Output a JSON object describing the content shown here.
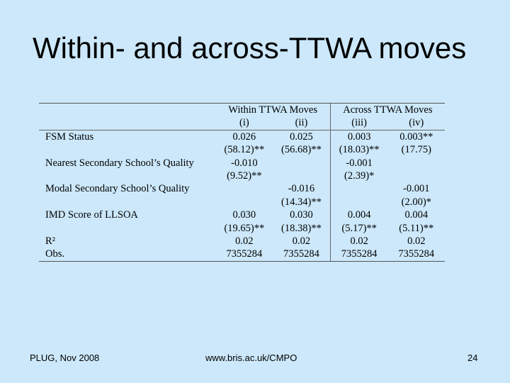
{
  "slide": {
    "title": "Within- and across-TTWA moves"
  },
  "table": {
    "groups": [
      "Within TTWA Moves",
      "Across TTWA Moves"
    ],
    "columns": [
      "(i)",
      "(ii)",
      "(iii)",
      "(iv)"
    ],
    "rows": [
      {
        "label": "FSM Status",
        "cells": [
          "0.026",
          "0.025",
          "0.003",
          "0.003**"
        ]
      },
      {
        "label": "",
        "cells": [
          "(58.12)**",
          "(56.68)**",
          "(18.03)**",
          "(17.75)"
        ]
      },
      {
        "label": "Nearest Secondary School’s Quality",
        "cells": [
          "-0.010",
          "",
          "-0.001",
          ""
        ]
      },
      {
        "label": "",
        "cells": [
          "(9.52)**",
          "",
          "(2.39)*",
          ""
        ]
      },
      {
        "label": "Modal Secondary School’s Quality",
        "cells": [
          "",
          "-0.016",
          "",
          "-0.001"
        ]
      },
      {
        "label": "",
        "cells": [
          "",
          "(14.34)**",
          "",
          "(2.00)*"
        ]
      },
      {
        "label": "IMD Score of LLSOA",
        "cells": [
          "0.030",
          "0.030",
          "0.004",
          "0.004"
        ]
      },
      {
        "label": "",
        "cells": [
          "(19.65)**",
          "(18.38)**",
          "(5.17)**",
          "(5.11)**"
        ]
      },
      {
        "label": "R²",
        "cells": [
          "0.02",
          "0.02",
          "0.02",
          "0.02"
        ]
      },
      {
        "label": "Obs.",
        "cells": [
          "7355284",
          "7355284",
          "7355284",
          "7355284"
        ]
      }
    ]
  },
  "footer": {
    "left": "PLUG, Nov 2008",
    "center": "www.bris.ac.uk/CMPO",
    "right": "24"
  }
}
